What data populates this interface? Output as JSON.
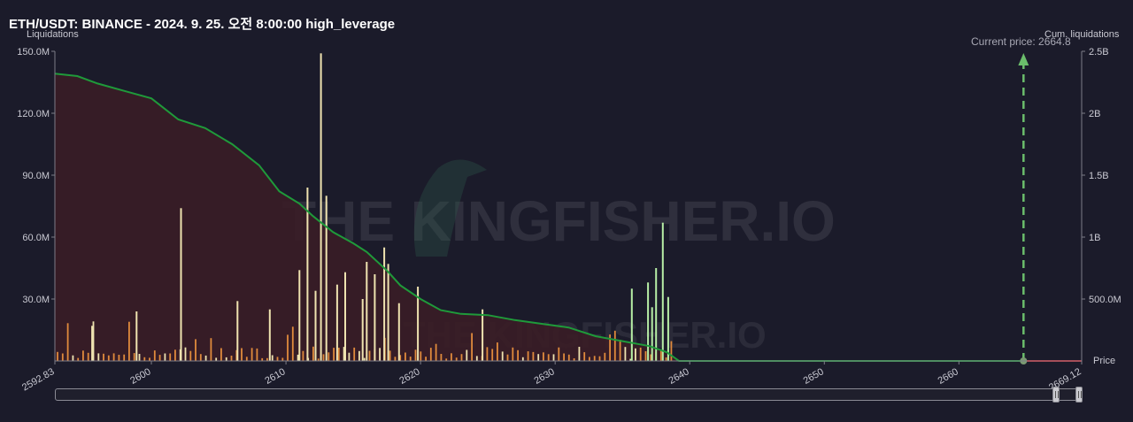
{
  "title": "ETH/USDT: BINANCE - 2024. 9. 25. 오전 8:00:00 high_leverage",
  "watermark": "THE KINGFISHER.IO",
  "current_price_label": "Current price: 2664.8",
  "colors": {
    "background": "#1b1b2a",
    "cum_line": "#1f9a3a",
    "area_fill": "#3a1d26",
    "bar_orange": "#e08a3c",
    "bar_cream": "#efe3b0",
    "bar_green": "#b7efa6",
    "current_price_arrow": "#6bbd6b",
    "short_line": "#d01e2a"
  },
  "chart_data": {
    "type": "bar",
    "title": "ETH/USDT: BINANCE - 2024. 9. 25. 오전 8:00:00 high_leverage",
    "xlabel": "Price",
    "ylabel": "Liquidations",
    "y2label": "Cum. liquidations",
    "xlim": [
      2592.83,
      2669.12
    ],
    "x_ticks": [
      "2592.83",
      "2600",
      "2610",
      "2620",
      "2630",
      "2640",
      "2650",
      "2660",
      "2669.12"
    ],
    "ylim": [
      0,
      150000000
    ],
    "y_ticks": [
      "150.0M",
      "120.0M",
      "90.0M",
      "60.0M",
      "30.0M"
    ],
    "y2lim": [
      0,
      2500000000
    ],
    "y2_ticks": [
      "2.5B",
      "2B",
      "1.5B",
      "1B",
      "500.0M"
    ],
    "grid": false,
    "current_price": 2664.8,
    "notable_bars": [
      {
        "price": 2595.6,
        "value": 17000000
      },
      {
        "price": 2598.9,
        "value": 24000000
      },
      {
        "price": 2602.2,
        "value": 74000000
      },
      {
        "price": 2606.4,
        "value": 29000000
      },
      {
        "price": 2608.8,
        "value": 25000000
      },
      {
        "price": 2611.0,
        "value": 44000000
      },
      {
        "price": 2611.6,
        "value": 84000000
      },
      {
        "price": 2612.2,
        "value": 34000000
      },
      {
        "price": 2612.6,
        "value": 149000000
      },
      {
        "price": 2613.0,
        "value": 80000000
      },
      {
        "price": 2613.8,
        "value": 37000000
      },
      {
        "price": 2614.4,
        "value": 43000000
      },
      {
        "price": 2615.7,
        "value": 30000000
      },
      {
        "price": 2616.0,
        "value": 48000000
      },
      {
        "price": 2616.6,
        "value": 42000000
      },
      {
        "price": 2617.3,
        "value": 55000000
      },
      {
        "price": 2617.6,
        "value": 47000000
      },
      {
        "price": 2618.4,
        "value": 28000000
      },
      {
        "price": 2619.8,
        "value": 36000000
      },
      {
        "price": 2624.6,
        "value": 25000000
      },
      {
        "price": 2635.7,
        "value": 35000000
      },
      {
        "price": 2636.9,
        "value": 38000000
      },
      {
        "price": 2637.2,
        "value": 26000000
      },
      {
        "price": 2637.5,
        "value": 45000000
      },
      {
        "price": 2638.0,
        "value": 67000000
      },
      {
        "price": 2638.4,
        "value": 31000000
      }
    ],
    "cum_series": {
      "name": "Cum. liquidations",
      "x": [
        2592.83,
        2594.5,
        2596.0,
        2598.0,
        2600.0,
        2602.0,
        2604.0,
        2606.0,
        2608.0,
        2609.5,
        2611.0,
        2612.0,
        2613.5,
        2615.0,
        2616.0,
        2617.5,
        2618.5,
        2620.0,
        2621.5,
        2623.0,
        2625.0,
        2627.0,
        2629.0,
        2631.0,
        2633.0,
        2635.0,
        2637.0,
        2638.3,
        2639.2,
        2664.8
      ],
      "y": [
        2320000000,
        2300000000,
        2240000000,
        2180000000,
        2120000000,
        1950000000,
        1880000000,
        1750000000,
        1580000000,
        1370000000,
        1270000000,
        1170000000,
        1040000000,
        950000000,
        880000000,
        730000000,
        610000000,
        500000000,
        410000000,
        380000000,
        370000000,
        330000000,
        300000000,
        270000000,
        200000000,
        160000000,
        120000000,
        70000000,
        0,
        0
      ]
    }
  }
}
